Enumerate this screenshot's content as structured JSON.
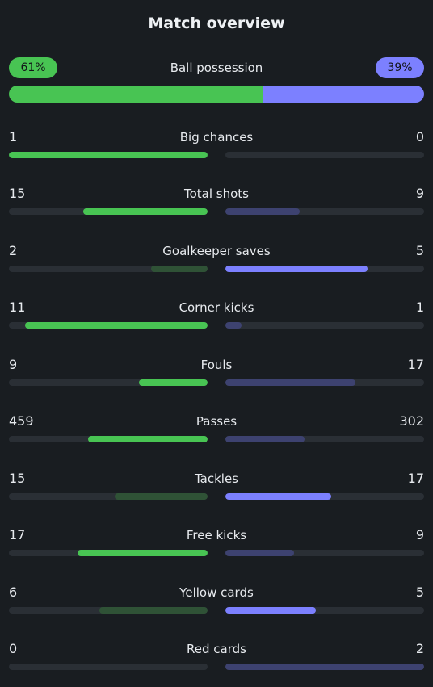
{
  "header": {
    "title": "Match overview"
  },
  "possession": {
    "label": "Ball possession",
    "home": "61%",
    "away": "39%",
    "home_fraction": 0.61,
    "away_fraction": 0.39,
    "home_color": "#48c453",
    "away_color": "#7c80ff"
  },
  "stats": [
    {
      "label": "Big chances",
      "home": "1",
      "away": "0",
      "home_frac": 1.0,
      "away_frac": 0.0,
      "leader": "home"
    },
    {
      "label": "Total shots",
      "home": "15",
      "away": "9",
      "home_frac": 0.625,
      "away_frac": 0.375,
      "leader": "home"
    },
    {
      "label": "Goalkeeper saves",
      "home": "2",
      "away": "5",
      "home_frac": 0.285,
      "away_frac": 0.715,
      "leader": "away"
    },
    {
      "label": "Corner kicks",
      "home": "11",
      "away": "1",
      "home_frac": 0.917,
      "away_frac": 0.083,
      "leader": "home"
    },
    {
      "label": "Fouls",
      "home": "9",
      "away": "17",
      "home_frac": 0.346,
      "away_frac": 0.654,
      "leader": "home"
    },
    {
      "label": "Passes",
      "home": "459",
      "away": "302",
      "home_frac": 0.603,
      "away_frac": 0.397,
      "leader": "home"
    },
    {
      "label": "Tackles",
      "home": "15",
      "away": "17",
      "home_frac": 0.469,
      "away_frac": 0.531,
      "leader": "away"
    },
    {
      "label": "Free kicks",
      "home": "17",
      "away": "9",
      "home_frac": 0.654,
      "away_frac": 0.346,
      "leader": "home"
    },
    {
      "label": "Yellow cards",
      "home": "6",
      "away": "5",
      "home_frac": 0.545,
      "away_frac": 0.455,
      "leader": "away"
    },
    {
      "label": "Red cards",
      "home": "0",
      "away": "2",
      "home_frac": 0.0,
      "away_frac": 1.0,
      "leader": "home"
    }
  ]
}
